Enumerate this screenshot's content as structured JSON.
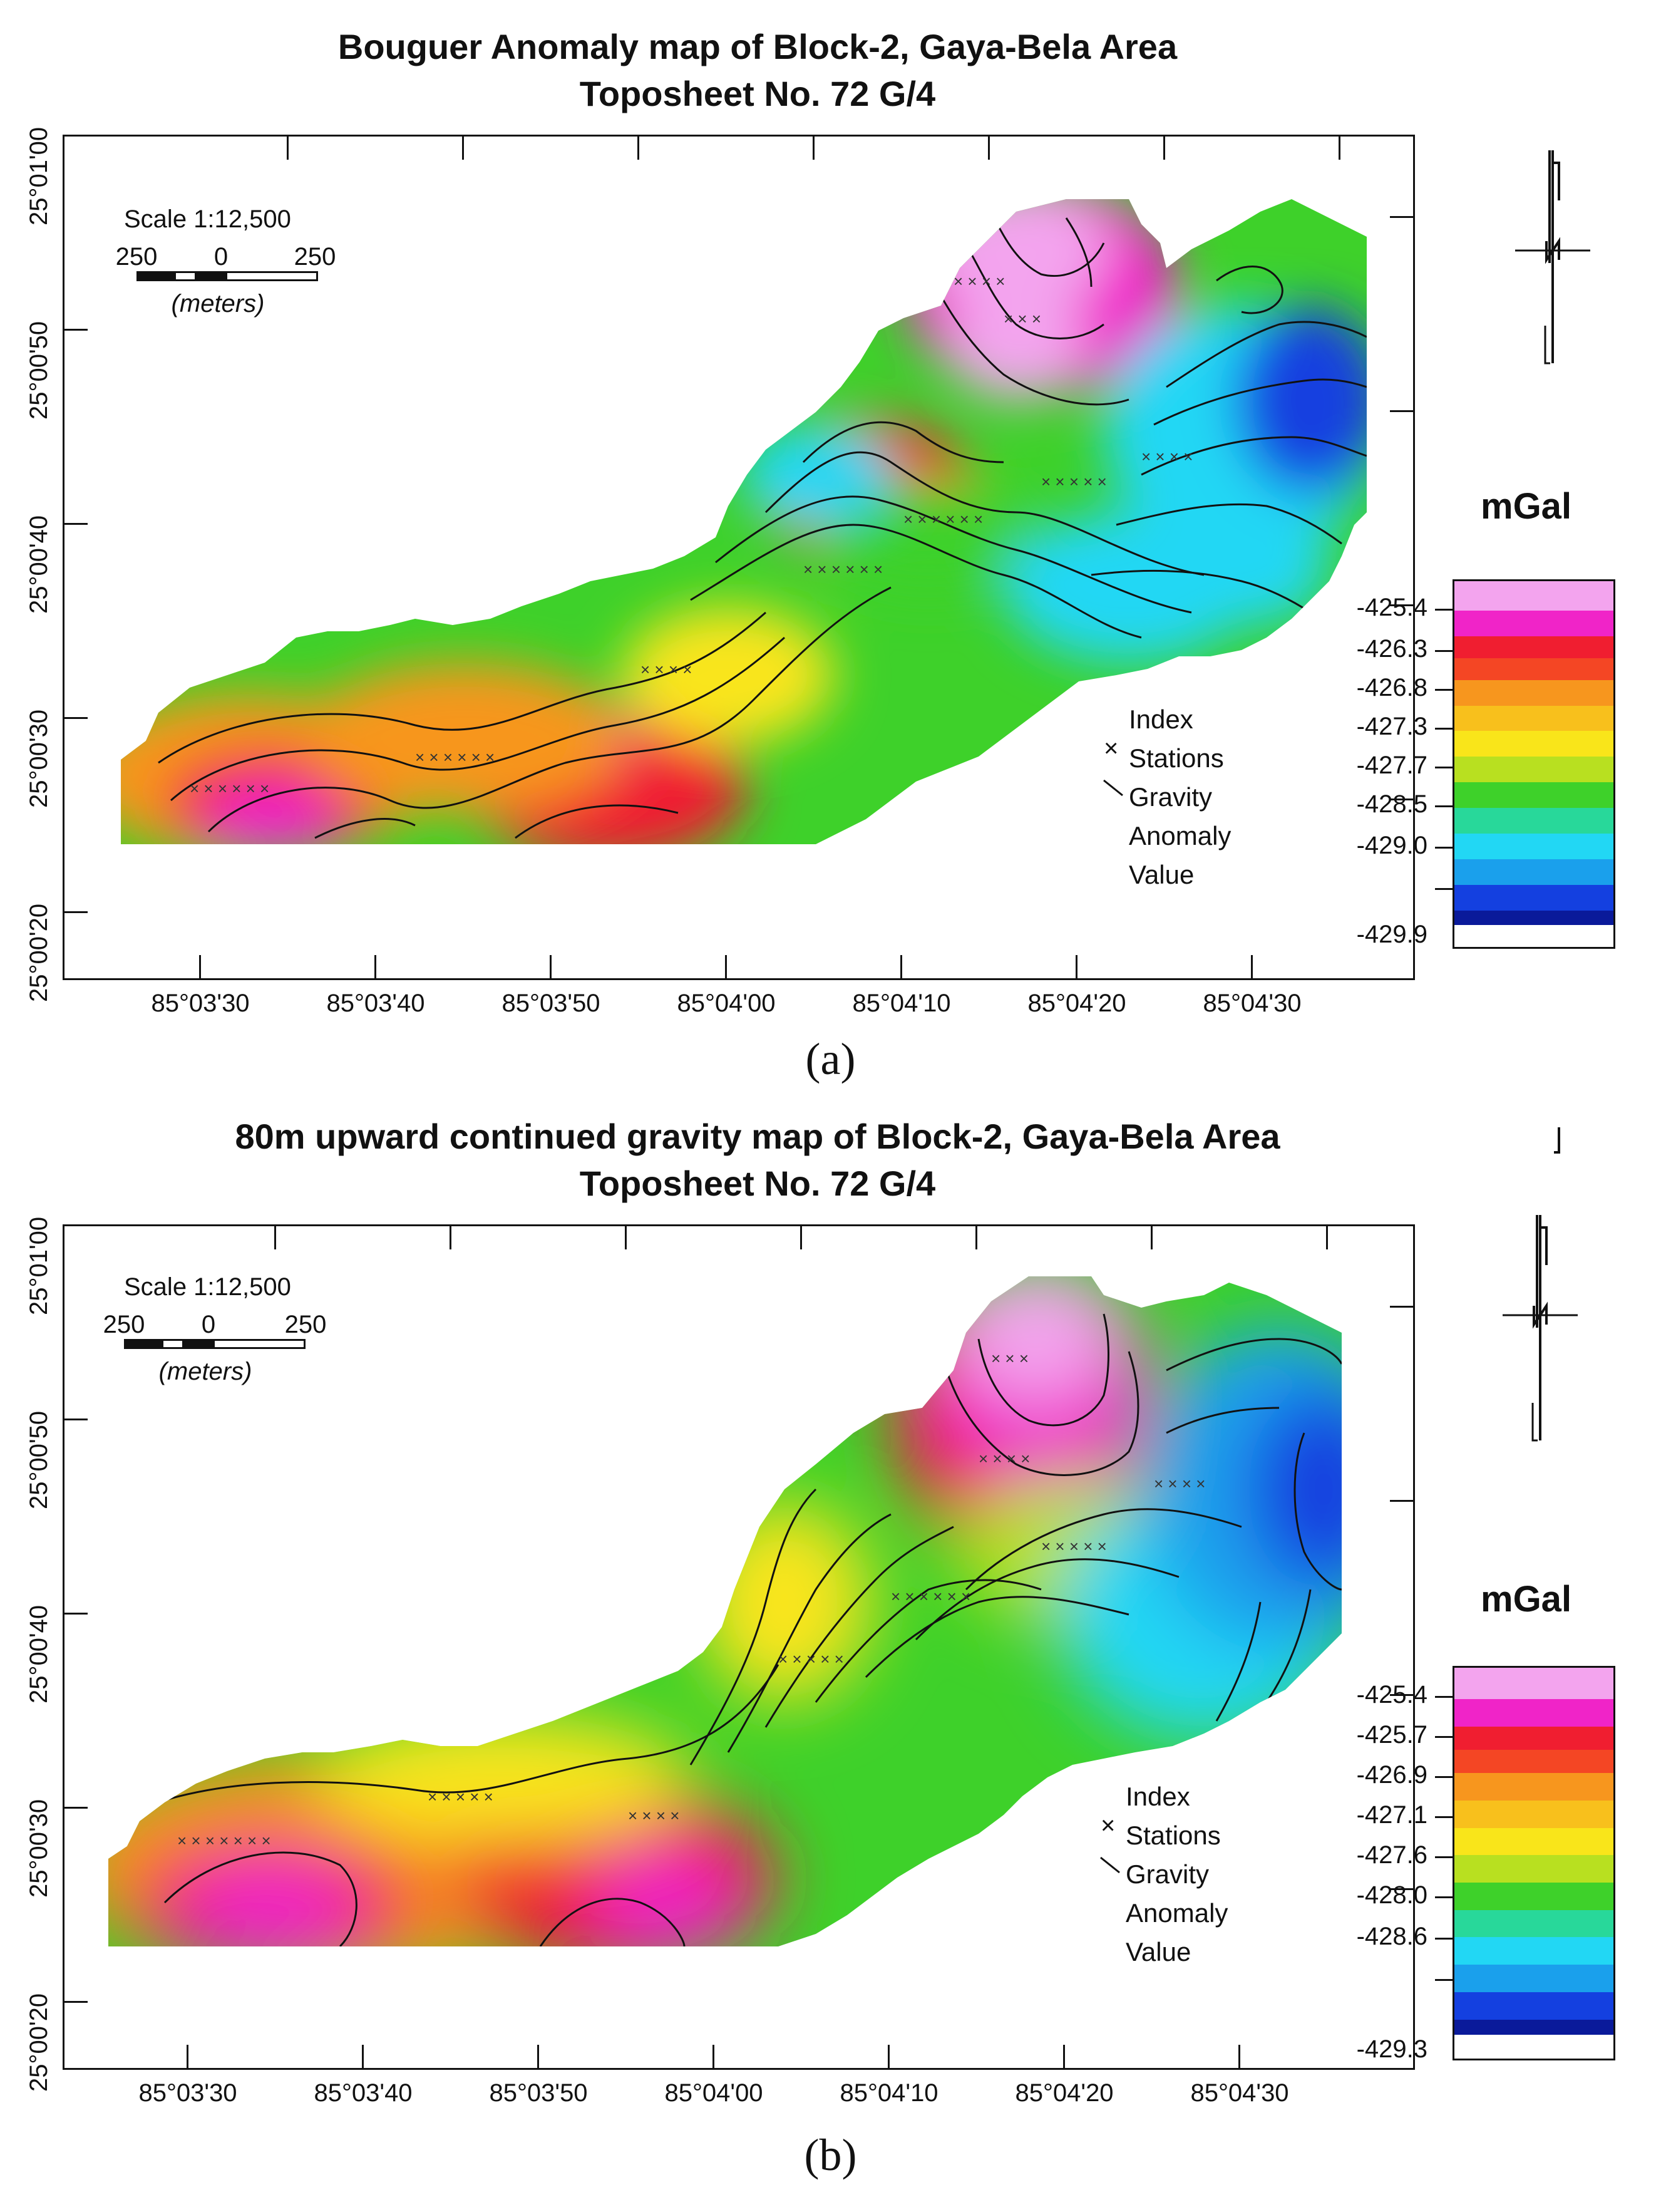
{
  "panels": [
    {
      "title_line1": "Bouguer Anomaly map of Block-2, Gaya-Bela Area",
      "title_line2": "Toposheet No. 72 G/4",
      "scale_text": "Scale 1:12,500",
      "scale_left": "250",
      "scale_mid": "0",
      "scale_right": "250",
      "scale_unit": "(meters)",
      "lat_labels": [
        "25°01'00",
        "25°00'50",
        "25°00'40",
        "25°00'30",
        "25°00'20"
      ],
      "lon_labels": [
        "85°03'30",
        "85°03'40",
        "85°03'50",
        "85°04'00",
        "85°04'10",
        "85°04'20",
        "85°04'30"
      ],
      "legend": {
        "line1": "Index",
        "line2": "Stations",
        "line3": "Gravity",
        "line4": "Anomaly",
        "line5": "Value"
      },
      "unit_label": "mGal",
      "colorbar_ticks": [
        "-425.4",
        "-426.3",
        "-426.8",
        "-427.3",
        "-427.7",
        "-428.5",
        "-429.0",
        "-429.9"
      ],
      "panel_label": "(a)"
    },
    {
      "title_line1": "80m upward continued gravity map of Block-2, Gaya-Bela Area",
      "title_line2": "Toposheet No. 72 G/4",
      "scale_text": "Scale 1:12,500",
      "scale_left": "250",
      "scale_mid": "0",
      "scale_right": "250",
      "scale_unit": "(meters)",
      "lat_labels": [
        "25°01'00",
        "25°00'50",
        "25°00'40",
        "25°00'30",
        "25°00'20"
      ],
      "lon_labels": [
        "85°03'30",
        "85°03'40",
        "85°03'50",
        "85°04'00",
        "85°04'10",
        "85°04'20",
        "85°04'30"
      ],
      "legend": {
        "line1": "Index",
        "line2": "Stations",
        "line3": "Gravity",
        "line4": "Anomaly",
        "line5": "Value"
      },
      "unit_label": "mGal",
      "colorbar_ticks": [
        "-425.4",
        "-425.7",
        "-426.9",
        "-427.1",
        "-427.6",
        "-428.0",
        "-428.6",
        "-429.3"
      ],
      "panel_label": "(b)"
    }
  ],
  "colors": {
    "pink": "#f3a4ee",
    "magenta": "#f024c8",
    "red": "#f01e30",
    "orange": "#f7961e",
    "yellow": "#f9e51a",
    "green": "#3ed12a",
    "cyan": "#22d7f4",
    "blue": "#1440e0",
    "navy": "#0a1a9a"
  }
}
